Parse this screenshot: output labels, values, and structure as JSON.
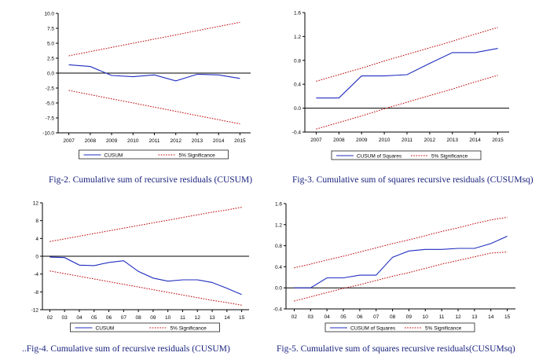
{
  "colors": {
    "series": "#1f2dbf",
    "bounds": "#c00000",
    "axis": "#000000",
    "zero": "#000000"
  },
  "captions": [
    {
      "label": "Fig-2.",
      "text": " Cumulative sum of recursive residuals (CUSUM)"
    },
    {
      "label": "Fig-3.",
      "text": " Cumulative sum of squares recursive residuals (CUSUMsq)"
    },
    {
      "label": "..Fig-4.",
      "text": " Cumulative sum of recursive residuals (CUSUM)"
    },
    {
      "label": "Fig-5.",
      "text": " Cumulative sum of squares recursive residuals(CUSUMsq)"
    }
  ],
  "chart_data": [
    {
      "type": "line",
      "categories": [
        "2007",
        "2008",
        "2009",
        "2010",
        "2011",
        "2012",
        "2013",
        "2014",
        "2015"
      ],
      "ylim": [
        -10,
        10
      ],
      "yticks": [
        "10.0",
        "7.5",
        "5.0",
        "2.5",
        "0.0",
        "-2.5",
        "-5.0",
        "-7.5",
        "-10.0"
      ],
      "ytick_values": [
        10,
        7.5,
        5,
        2.5,
        0,
        -2.5,
        -5,
        -7.5,
        -10
      ],
      "series": [
        {
          "name": "CUSUM",
          "role": "main",
          "values": [
            1.4,
            1.1,
            -0.4,
            -0.6,
            -0.3,
            -1.3,
            -0.2,
            -0.3,
            -0.9
          ]
        },
        {
          "name": "5% Significance",
          "role": "bound",
          "values": [
            2.9,
            3.6,
            4.3,
            5.0,
            5.7,
            6.4,
            7.1,
            7.8,
            8.5
          ]
        },
        {
          "role": "bound",
          "values": [
            -2.9,
            -3.6,
            -4.3,
            -5.0,
            -5.7,
            -6.4,
            -7.1,
            -7.8,
            -8.5
          ]
        }
      ],
      "legend": "bottom"
    },
    {
      "type": "line",
      "categories": [
        "2007",
        "2008",
        "2009",
        "2010",
        "2011",
        "2012",
        "2013",
        "2014",
        "2015"
      ],
      "ylim": [
        -0.4,
        1.6
      ],
      "yticks": [
        "1.6",
        "1.2",
        "0.8",
        "0.4",
        "0.0",
        "-0.4"
      ],
      "ytick_values": [
        1.6,
        1.2,
        0.8,
        0.4,
        0.0,
        -0.4
      ],
      "series": [
        {
          "name": "CUSUM of Squares",
          "role": "main",
          "values": [
            0.17,
            0.17,
            0.54,
            0.54,
            0.56,
            0.75,
            0.93,
            0.93,
            1.0
          ]
        },
        {
          "name": "5% Significance",
          "role": "bound",
          "values": [
            0.45,
            0.56,
            0.67,
            0.79,
            0.9,
            1.01,
            1.12,
            1.24,
            1.35
          ]
        },
        {
          "role": "bound",
          "values": [
            -0.35,
            -0.24,
            -0.13,
            -0.01,
            0.1,
            0.21,
            0.32,
            0.44,
            0.55
          ]
        }
      ],
      "legend": "bottom"
    },
    {
      "type": "line",
      "categories": [
        "02",
        "03",
        "04",
        "05",
        "06",
        "07",
        "08",
        "09",
        "10",
        "11",
        "12",
        "13",
        "14",
        "15"
      ],
      "ylim": [
        -12,
        12
      ],
      "yticks": [
        "12",
        "8",
        "4",
        "0",
        "-4",
        "-8",
        "-12"
      ],
      "ytick_values": [
        12,
        8,
        4,
        0,
        -4,
        -8,
        -12
      ],
      "series": [
        {
          "name": "CUSUM",
          "role": "main",
          "values": [
            -0.2,
            -0.3,
            -2.0,
            -2.1,
            -1.4,
            -1.0,
            -3.4,
            -4.9,
            -5.6,
            -5.3,
            -5.3,
            -5.9,
            -7.2,
            -8.6
          ]
        },
        {
          "name": "5% Significance",
          "role": "bound",
          "values": [
            3.3,
            3.9,
            4.5,
            5.1,
            5.7,
            6.3,
            6.9,
            7.5,
            8.1,
            8.7,
            9.3,
            9.9,
            10.4,
            11.0
          ]
        },
        {
          "role": "bound",
          "values": [
            -3.3,
            -3.9,
            -4.5,
            -5.1,
            -5.7,
            -6.3,
            -6.9,
            -7.5,
            -8.1,
            -8.7,
            -9.3,
            -9.9,
            -10.4,
            -11.0
          ]
        }
      ],
      "legend": "bottom"
    },
    {
      "type": "line",
      "categories": [
        "02",
        "03",
        "04",
        "05",
        "06",
        "07",
        "08",
        "09",
        "10",
        "11",
        "12",
        "13",
        "14",
        "15"
      ],
      "ylim": [
        -0.4,
        1.6
      ],
      "yticks": [
        "1.6",
        "1.2",
        "0.8",
        "0.4",
        "0.0",
        "-0.4"
      ],
      "ytick_values": [
        1.6,
        1.2,
        0.8,
        0.4,
        0.0,
        -0.4
      ],
      "series": [
        {
          "name": "CUSUM of Squares",
          "role": "main",
          "values": [
            0.0,
            0.0,
            0.19,
            0.19,
            0.24,
            0.24,
            0.58,
            0.7,
            0.73,
            0.73,
            0.75,
            0.75,
            0.84,
            0.98
          ]
        },
        {
          "name": "5% Significance",
          "role": "bound",
          "values": [
            0.38,
            0.45,
            0.53,
            0.6,
            0.68,
            0.76,
            0.84,
            0.91,
            0.99,
            1.07,
            1.14,
            1.22,
            1.29,
            1.34
          ]
        },
        {
          "role": "bound",
          "values": [
            -0.25,
            -0.17,
            -0.09,
            -0.01,
            0.06,
            0.14,
            0.22,
            0.29,
            0.37,
            0.45,
            0.52,
            0.59,
            0.66,
            0.68
          ]
        }
      ],
      "legend": "bottom"
    }
  ]
}
